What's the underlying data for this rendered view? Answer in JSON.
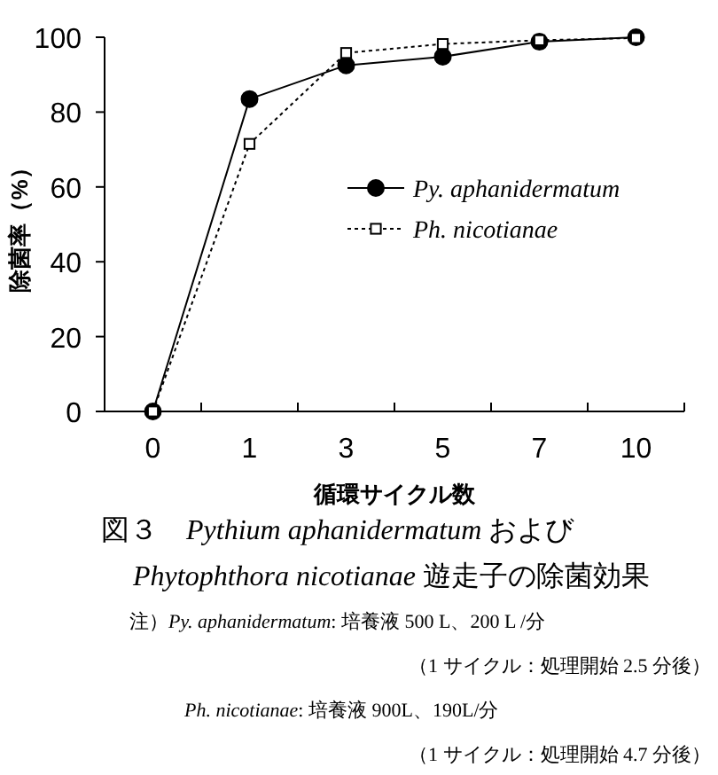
{
  "chart_data": {
    "type": "line",
    "title": "図３　Pythium aphanidermatum および\nPhytophthora nicotianae 遊走子の除菌効果",
    "xlabel": "循環サイクル数",
    "ylabel": "除菌率（%）",
    "categories": [
      "0",
      "1",
      "3",
      "5",
      "7",
      "10"
    ],
    "series": [
      {
        "name": "Py. aphanidermatum",
        "color": "#000000",
        "marker": "circle",
        "line_style": "solid",
        "values": [
          0,
          83.5,
          92.5,
          94.8,
          98.8,
          100
        ]
      },
      {
        "name": "Ph. nicotianae",
        "color": "#000000",
        "marker": "square",
        "line_style": "dotted",
        "values": [
          0,
          71.5,
          95.8,
          98.2,
          99.2,
          99.8
        ]
      }
    ],
    "ylim": [
      0,
      100
    ],
    "yticks": [
      0,
      20,
      40,
      60,
      80,
      100
    ],
    "grid": false,
    "legend": "right",
    "annotations": [
      "注）Py. aphanidermatum: 培養液 500 L、200 L /分",
      "（1 サイクル：処理開始 2.5 分後）",
      "Ph. nicotianae: 培養液 900L、190L/分",
      "（1 サイクル：処理開始 4.7 分後）"
    ]
  }
}
